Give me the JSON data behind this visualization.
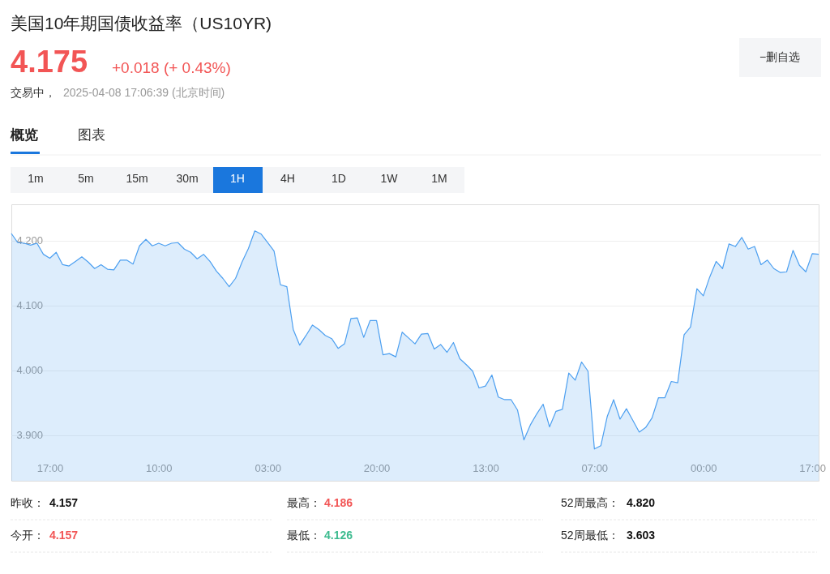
{
  "chart_data": {
    "type": "area",
    "title": "美国10年期国债收益率（US10YR)",
    "annotations": [
      "4.175",
      "+0.018 (+ 0.43%)",
      "交易中，",
      "2025-04-08 17:06:39 (北京时间)",
      "−删自选",
      "概览",
      "图表",
      "1m",
      "5m",
      "15m",
      "30m",
      "1H",
      "4H",
      "1D",
      "1W",
      "1M",
      "昨收：",
      "4.157",
      "最高：",
      "4.186",
      "52周最高：",
      "4.820",
      "今开：",
      "4.157",
      "最低：",
      "4.126",
      "52周最低：",
      "3.603"
    ],
    "categories": [
      null,
      null,
      null,
      null,
      null,
      null,
      "17:00",
      null,
      null,
      null,
      null,
      null,
      null,
      null,
      null,
      null,
      null,
      null,
      null,
      null,
      null,
      null,
      null,
      "10:00",
      null,
      null,
      null,
      null,
      null,
      null,
      null,
      null,
      null,
      null,
      null,
      null,
      null,
      null,
      null,
      null,
      "03:00",
      null,
      null,
      null,
      null,
      null,
      null,
      null,
      null,
      null,
      null,
      null,
      null,
      null,
      null,
      null,
      null,
      "20:00",
      null,
      null,
      null,
      null,
      null,
      null,
      null,
      null,
      null,
      null,
      null,
      null,
      null,
      null,
      null,
      null,
      "13:00",
      null,
      null,
      null,
      null,
      null,
      null,
      null,
      null,
      null,
      null,
      null,
      null,
      null,
      null,
      null,
      null,
      "07:00",
      null,
      null,
      null,
      null,
      null,
      null,
      null,
      null,
      null,
      null,
      null,
      null,
      null,
      null,
      null,
      null,
      "00:00",
      null,
      null,
      null,
      null,
      null,
      null,
      null,
      null,
      null,
      null,
      null,
      null,
      null,
      null,
      null,
      null,
      "17:00",
      null
    ],
    "series": [
      {
        "color": "#4c9ff0",
        "values": [
          4.211,
          4.197,
          4.196,
          4.193,
          4.196,
          4.179,
          4.173,
          4.182,
          4.163,
          4.161,
          4.168,
          4.175,
          4.167,
          4.157,
          4.163,
          4.156,
          4.155,
          4.17,
          4.17,
          4.164,
          4.192,
          4.202,
          4.192,
          4.196,
          4.192,
          4.196,
          4.197,
          4.187,
          4.182,
          4.172,
          4.179,
          4.168,
          4.153,
          4.142,
          4.129,
          4.142,
          4.167,
          4.188,
          4.215,
          4.21,
          4.197,
          4.184,
          4.132,
          4.129,
          4.063,
          4.039,
          4.054,
          4.07,
          4.063,
          4.054,
          4.049,
          4.034,
          4.041,
          4.08,
          4.081,
          4.051,
          4.077,
          4.077,
          4.024,
          4.026,
          4.021,
          4.059,
          4.05,
          4.041,
          4.056,
          4.057,
          4.033,
          4.04,
          4.028,
          4.043,
          4.018,
          4.009,
          3.999,
          3.973,
          3.976,
          3.993,
          3.959,
          3.955,
          3.955,
          3.939,
          3.893,
          3.916,
          3.933,
          3.948,
          3.913,
          3.937,
          3.94,
          3.996,
          3.985,
          4.013,
          3.999,
          3.879,
          3.884,
          3.929,
          3.955,
          3.925,
          3.941,
          3.923,
          3.905,
          3.912,
          3.927,
          3.958,
          3.958,
          3.983,
          3.981,
          4.055,
          4.067,
          4.126,
          4.115,
          4.144,
          4.168,
          4.157,
          4.195,
          4.191,
          4.205,
          4.187,
          4.191,
          4.163,
          4.17,
          4.157,
          4.151,
          4.152,
          4.185,
          4.162,
          4.152,
          4.18,
          4.179
        ]
      }
    ],
    "ylim": [
      3.83,
      4.256
    ],
    "yticks": [
      {
        "value": 3.9,
        "label": "3.900"
      },
      {
        "value": 4.0,
        "label": "4.000"
      },
      {
        "value": 4.1,
        "label": "4.100"
      },
      {
        "value": 4.2,
        "label": "4.200"
      }
    ],
    "grid": "y"
  }
}
